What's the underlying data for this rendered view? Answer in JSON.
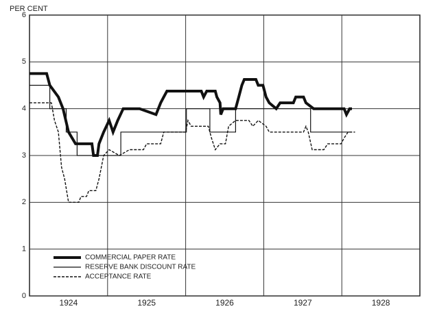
{
  "chart_data": {
    "type": "line",
    "ylabel": "PER CENT",
    "xlim": [
      1924,
      1929
    ],
    "ylim": [
      0,
      6
    ],
    "yticks": [
      0,
      1,
      2,
      3,
      4,
      5,
      6
    ],
    "xticks": [
      {
        "value": 1924.5,
        "label": "1924"
      },
      {
        "value": 1925.5,
        "label": "1925"
      },
      {
        "value": 1926.5,
        "label": "1926"
      },
      {
        "value": 1927.5,
        "label": "1927"
      },
      {
        "value": 1928.5,
        "label": "1928"
      }
    ],
    "xgrid": [
      1925,
      1926,
      1927,
      1928
    ],
    "grid": true,
    "legend": "lower left",
    "series": [
      {
        "name": "COMMERCIAL PAPER RATE",
        "color": "#111",
        "width": 4,
        "dash": "none",
        "x": [
          1924.0,
          1924.22,
          1924.26,
          1924.37,
          1924.43,
          1924.5,
          1924.59,
          1924.63,
          1924.8,
          1924.82,
          1924.87,
          1924.89,
          1924.95,
          1925.02,
          1925.07,
          1925.13,
          1925.2,
          1925.41,
          1925.62,
          1925.68,
          1925.72,
          1925.76,
          1926.2,
          1926.23,
          1926.27,
          1926.38,
          1926.4,
          1926.44,
          1926.45,
          1926.48,
          1926.64,
          1926.68,
          1926.72,
          1926.75,
          1926.9,
          1926.93,
          1926.99,
          1927.03,
          1927.07,
          1927.16,
          1927.21,
          1927.38,
          1927.41,
          1927.51,
          1927.54,
          1927.64,
          1928.03,
          1928.06,
          1928.1,
          1928.13
        ],
        "values": [
          4.75,
          4.75,
          4.5,
          4.25,
          4.0,
          3.5,
          3.25,
          3.25,
          3.25,
          3.0,
          3.0,
          3.25,
          3.5,
          3.75,
          3.5,
          3.75,
          4.0,
          4.0,
          3.875,
          4.125,
          4.25,
          4.375,
          4.375,
          4.25,
          4.375,
          4.375,
          4.25,
          4.125,
          3.875,
          4.0,
          4.0,
          4.25,
          4.5,
          4.625,
          4.625,
          4.5,
          4.5,
          4.25,
          4.125,
          4.0,
          4.125,
          4.125,
          4.25,
          4.25,
          4.125,
          4.0,
          4.0,
          3.875,
          4.0,
          4.0
        ]
      },
      {
        "name": "RESERVE BANK DISCOUNT RATE",
        "color": "#111",
        "width": 1.2,
        "dash": "none",
        "x": [
          1924.0,
          1924.26,
          1924.26,
          1924.47,
          1924.47,
          1924.61,
          1924.61,
          1925.17,
          1925.17,
          1926.01,
          1926.01,
          1926.31,
          1926.31,
          1926.64,
          1926.64,
          1927.6,
          1927.6,
          1928.13
        ],
        "values": [
          4.5,
          4.5,
          4.0,
          4.0,
          3.5,
          3.5,
          3.0,
          3.0,
          3.5,
          3.5,
          4.0,
          4.0,
          3.5,
          3.5,
          4.0,
          4.0,
          3.5,
          3.5
        ]
      },
      {
        "name": "ACCEPTANCE RATE",
        "color": "#111",
        "width": 1.4,
        "dash": "4 2",
        "x": [
          1924.0,
          1924.28,
          1924.32,
          1924.37,
          1924.41,
          1924.45,
          1924.5,
          1924.63,
          1924.66,
          1924.73,
          1924.76,
          1924.85,
          1924.89,
          1924.95,
          1925.02,
          1925.15,
          1925.28,
          1925.46,
          1925.5,
          1925.68,
          1925.72,
          1926.0,
          1926.03,
          1926.07,
          1926.29,
          1926.33,
          1926.38,
          1926.44,
          1926.51,
          1926.55,
          1926.64,
          1926.81,
          1926.86,
          1926.93,
          1927.03,
          1927.07,
          1927.51,
          1927.54,
          1927.57,
          1927.62,
          1927.77,
          1927.82,
          1927.99,
          1928.03,
          1928.08,
          1928.17
        ],
        "values": [
          4.125,
          4.125,
          3.75,
          3.5,
          2.75,
          2.5,
          2.0,
          2.0,
          2.125,
          2.125,
          2.25,
          2.25,
          2.5,
          3.0,
          3.125,
          3.0,
          3.125,
          3.125,
          3.25,
          3.25,
          3.5,
          3.5,
          3.75,
          3.625,
          3.625,
          3.375,
          3.125,
          3.25,
          3.25,
          3.625,
          3.75,
          3.75,
          3.625,
          3.75,
          3.625,
          3.5,
          3.5,
          3.625,
          3.5,
          3.125,
          3.125,
          3.25,
          3.25,
          3.375,
          3.5,
          3.5
        ]
      }
    ]
  }
}
